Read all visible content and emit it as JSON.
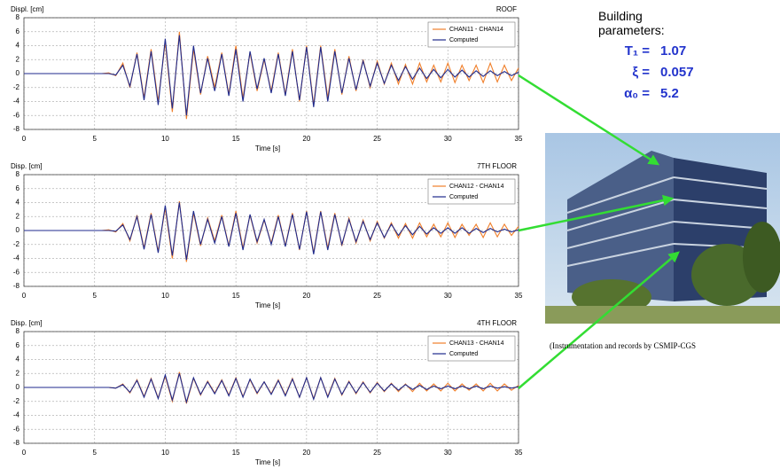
{
  "chart_data": [
    {
      "type": "line",
      "title": "Displ. [cm]",
      "annotation": "ROOF",
      "x_label": "Time [s]",
      "x": [
        0,
        0.5,
        1,
        1.5,
        2,
        2.5,
        3,
        3.5,
        4,
        4.5,
        5,
        5.5,
        6,
        6.5,
        7,
        7.5,
        8,
        8.5,
        9,
        9.5,
        10,
        10.5,
        11,
        11.5,
        12,
        12.5,
        13,
        13.5,
        14,
        14.5,
        15,
        15.5,
        16,
        16.5,
        17,
        17.5,
        18,
        18.5,
        19,
        19.5,
        20,
        20.5,
        21,
        21.5,
        22,
        22.5,
        23,
        23.5,
        24,
        24.5,
        25,
        25.5,
        26,
        26.5,
        27,
        27.5,
        28,
        28.5,
        29,
        29.5,
        30,
        30.5,
        31,
        31.5,
        32,
        32.5,
        33,
        33.5,
        34,
        34.5,
        35
      ],
      "series": [
        {
          "name": "CHAN11 - CHAN14",
          "color": "#f07f2a",
          "values": [
            0,
            0,
            0,
            0,
            0,
            0,
            0,
            0,
            0,
            0,
            0,
            0,
            0.1,
            -0.3,
            1.5,
            -2,
            3,
            -3.5,
            3.5,
            -4,
            4.5,
            -5.5,
            6,
            -6.5,
            3.5,
            -3,
            2.5,
            -2,
            3,
            -3,
            4,
            -3.5,
            3,
            -2.5,
            2,
            -2.5,
            3,
            -3,
            3.5,
            -4,
            4,
            -4.5,
            4,
            -3.5,
            3.5,
            -3,
            2.5,
            -2.5,
            2,
            -2,
            1.8,
            -1.5,
            1.5,
            -1.5,
            1.3,
            -1.5,
            1.5,
            -1.2,
            1.2,
            -1.2,
            1.5,
            -1.3,
            1.2,
            -1,
            1.2,
            -1.3,
            1.5,
            -1.2,
            1.2,
            -1,
            0.8
          ]
        },
        {
          "name": "Computed",
          "color": "#1f2a8c",
          "values": [
            0,
            0,
            0,
            0,
            0,
            0,
            0,
            0,
            0,
            0,
            0,
            0,
            0,
            -0.2,
            1.2,
            -1.8,
            2.8,
            -3.8,
            3.2,
            -4.5,
            5,
            -5,
            5.5,
            -6,
            4,
            -2.8,
            2.2,
            -2.5,
            2.8,
            -3.2,
            3.5,
            -4,
            3.2,
            -2.2,
            2.2,
            -2.8,
            2.8,
            -3.2,
            3.2,
            -3.8,
            3.8,
            -4.8,
            3.8,
            -4,
            3.2,
            -2.8,
            2.2,
            -2.3,
            1.8,
            -1.8,
            1.5,
            -1.4,
            1.2,
            -1,
            1,
            -0.8,
            0.8,
            -0.7,
            0.6,
            -0.6,
            0.6,
            -0.5,
            0.5,
            -0.5,
            0.4,
            -0.4,
            0.4,
            -0.3,
            0.3,
            -0.3,
            0.2
          ]
        }
      ],
      "xlim": [
        0,
        35
      ],
      "ylim": [
        -8,
        8
      ],
      "xticks": [
        0,
        5,
        10,
        15,
        20,
        25,
        30,
        35
      ],
      "yticks": [
        -8,
        -6,
        -4,
        -2,
        0,
        2,
        4,
        6,
        8
      ],
      "grid": true,
      "legend": "upper right"
    },
    {
      "type": "line",
      "title": "Disp. [cm]",
      "annotation": "7TH FLOOR",
      "x_label": "Time [s]",
      "x": [
        0,
        0.5,
        1,
        1.5,
        2,
        2.5,
        3,
        3.5,
        4,
        4.5,
        5,
        5.5,
        6,
        6.5,
        7,
        7.5,
        8,
        8.5,
        9,
        9.5,
        10,
        10.5,
        11,
        11.5,
        12,
        12.5,
        13,
        13.5,
        14,
        14.5,
        15,
        15.5,
        16,
        16.5,
        17,
        17.5,
        18,
        18.5,
        19,
        19.5,
        20,
        20.5,
        21,
        21.5,
        22,
        22.5,
        23,
        23.5,
        24,
        24.5,
        25,
        25.5,
        26,
        26.5,
        27,
        27.5,
        28,
        28.5,
        29,
        29.5,
        30,
        30.5,
        31,
        31.5,
        32,
        32.5,
        33,
        33.5,
        34,
        34.5,
        35
      ],
      "series": [
        {
          "name": "CHAN12 - CHAN14",
          "color": "#f07f2a",
          "values": [
            0,
            0,
            0,
            0,
            0,
            0,
            0,
            0,
            0,
            0,
            0,
            0,
            0.1,
            -0.2,
            1,
            -1.5,
            2.2,
            -2.5,
            2.5,
            -3,
            3.2,
            -4,
            4.2,
            -4.5,
            2.5,
            -2.2,
            1.8,
            -1.5,
            2.2,
            -2.2,
            2.8,
            -2.5,
            2.2,
            -1.8,
            1.5,
            -1.8,
            2.2,
            -2.2,
            2.5,
            -2.8,
            2.8,
            -3.2,
            2.8,
            -2.5,
            2.5,
            -2.2,
            1.8,
            -1.8,
            1.5,
            -1.5,
            1.3,
            -1.1,
            1.1,
            -1.1,
            1,
            -1.1,
            1.1,
            -0.9,
            0.9,
            -0.9,
            1.1,
            -1,
            0.9,
            -0.7,
            0.9,
            -1,
            1.1,
            -0.9,
            0.9,
            -0.7,
            0.6
          ]
        },
        {
          "name": "Computed",
          "color": "#1f2a8c",
          "values": [
            0,
            0,
            0,
            0,
            0,
            0,
            0,
            0,
            0,
            0,
            0,
            0,
            0,
            -0.1,
            0.8,
            -1.3,
            2,
            -2.7,
            2.3,
            -3.2,
            3.6,
            -3.6,
            4,
            -4.2,
            2.8,
            -2,
            1.6,
            -1.8,
            2,
            -2.3,
            2.5,
            -2.8,
            2.3,
            -1.6,
            1.6,
            -2,
            2,
            -2.3,
            2.3,
            -2.7,
            2.7,
            -3.4,
            2.7,
            -2.8,
            2.3,
            -2,
            1.6,
            -1.6,
            1.3,
            -1.3,
            1.1,
            -1,
            0.9,
            -0.7,
            0.7,
            -0.6,
            0.6,
            -0.5,
            0.4,
            -0.4,
            0.4,
            -0.4,
            0.4,
            -0.4,
            0.3,
            -0.3,
            0.3,
            -0.2,
            0.2,
            -0.2,
            0.1
          ]
        }
      ],
      "xlim": [
        0,
        35
      ],
      "ylim": [
        -8,
        8
      ],
      "xticks": [
        0,
        5,
        10,
        15,
        20,
        25,
        30,
        35
      ],
      "yticks": [
        -8,
        -6,
        -4,
        -2,
        0,
        2,
        4,
        6,
        8
      ],
      "grid": true,
      "legend": "upper right"
    },
    {
      "type": "line",
      "title": "Disp. [cm]",
      "annotation": "4TH FLOOR",
      "x_label": "Time [s]",
      "x": [
        0,
        0.5,
        1,
        1.5,
        2,
        2.5,
        3,
        3.5,
        4,
        4.5,
        5,
        5.5,
        6,
        6.5,
        7,
        7.5,
        8,
        8.5,
        9,
        9.5,
        10,
        10.5,
        11,
        11.5,
        12,
        12.5,
        13,
        13.5,
        14,
        14.5,
        15,
        15.5,
        16,
        16.5,
        17,
        17.5,
        18,
        18.5,
        19,
        19.5,
        20,
        20.5,
        21,
        21.5,
        22,
        22.5,
        23,
        23.5,
        24,
        24.5,
        25,
        25.5,
        26,
        26.5,
        27,
        27.5,
        28,
        28.5,
        29,
        29.5,
        30,
        30.5,
        31,
        31.5,
        32,
        32.5,
        33,
        33.5,
        34,
        34.5,
        35
      ],
      "series": [
        {
          "name": "CHAN13 - CHAN14",
          "color": "#f07f2a",
          "values": [
            0,
            0,
            0,
            0,
            0,
            0,
            0,
            0,
            0,
            0,
            0,
            0,
            0,
            -0.1,
            0.5,
            -0.8,
            1.1,
            -1.3,
            1.3,
            -1.5,
            1.6,
            -2,
            2.2,
            -2.3,
            1.3,
            -1.1,
            0.9,
            -0.8,
            1.1,
            -1.1,
            1.4,
            -1.3,
            1.1,
            -0.9,
            0.8,
            -0.9,
            1.1,
            -1.1,
            1.3,
            -1.4,
            1.4,
            -1.6,
            1.4,
            -1.3,
            1.3,
            -1.1,
            0.9,
            -0.9,
            0.8,
            -0.8,
            0.7,
            -0.6,
            0.6,
            -0.6,
            0.5,
            -0.6,
            0.6,
            -0.5,
            0.5,
            -0.5,
            0.6,
            -0.5,
            0.5,
            -0.4,
            0.5,
            -0.5,
            0.6,
            -0.5,
            0.5,
            -0.4,
            0.3
          ]
        },
        {
          "name": "Computed",
          "color": "#1f2a8c",
          "values": [
            0,
            0,
            0,
            0,
            0,
            0,
            0,
            0,
            0,
            0,
            0,
            0,
            0,
            -0.1,
            0.4,
            -0.7,
            1,
            -1.4,
            1.2,
            -1.6,
            1.8,
            -1.8,
            2,
            -2.1,
            1.4,
            -1,
            0.8,
            -0.9,
            1,
            -1.2,
            1.3,
            -1.4,
            1.2,
            -0.8,
            0.8,
            -1,
            1,
            -1.2,
            1.2,
            -1.4,
            1.4,
            -1.7,
            1.4,
            -1.4,
            1.2,
            -1,
            0.8,
            -0.8,
            0.7,
            -0.7,
            0.6,
            -0.5,
            0.5,
            -0.4,
            0.4,
            -0.3,
            0.3,
            -0.3,
            0.2,
            -0.2,
            0.2,
            -0.2,
            0.2,
            -0.2,
            0.2,
            -0.2,
            0.2,
            -0.1,
            0.1,
            -0.1,
            0.1
          ]
        }
      ],
      "xlim": [
        0,
        35
      ],
      "ylim": [
        -8,
        8
      ],
      "xticks": [
        0,
        5,
        10,
        15,
        20,
        25,
        30,
        35
      ],
      "yticks": [
        -8,
        -6,
        -4,
        -2,
        0,
        2,
        4,
        6,
        8
      ],
      "grid": true,
      "legend": "upper right"
    }
  ],
  "building_parameters": {
    "title": "Building parameters:",
    "params": [
      {
        "symbol": "T₁ =",
        "value": 1.07
      },
      {
        "symbol": "ξ =",
        "value": 0.057
      },
      {
        "symbol": "α₀ =",
        "value": 5.2
      }
    ]
  },
  "caption": "(Instrumentation and records by CSMIP-CGS"
}
